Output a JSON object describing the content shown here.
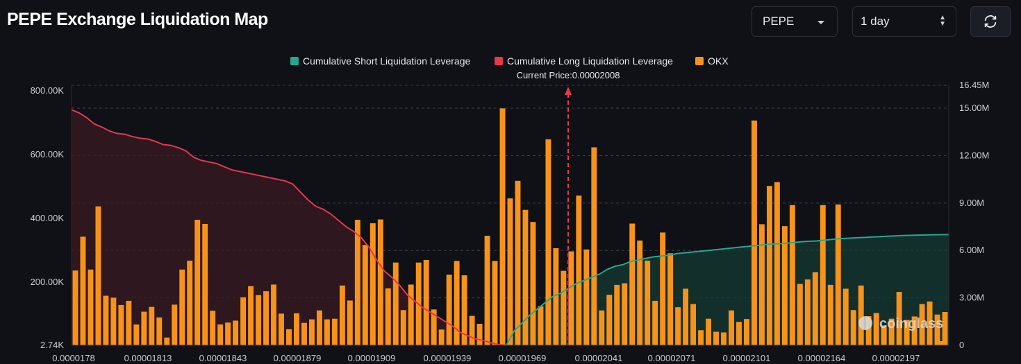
{
  "header": {
    "title": "PEPE Exchange Liquidation Map"
  },
  "controls": {
    "coin_select": {
      "value": "PEPE"
    },
    "range_select": {
      "value": "1 day"
    },
    "refresh_icon": "refresh-icon"
  },
  "colors": {
    "short": "#26a88e",
    "long": "#e8364d",
    "okx": "#f7931a",
    "background": "#0f1116",
    "grid": "#3a3f4a",
    "current_price": "#e8364d"
  },
  "chart_data": {
    "type": "bar",
    "legend": [
      {
        "name": "Cumulative Short Liquidation Leverage",
        "color": "#26a88e"
      },
      {
        "name": "Cumulative Long Liquidation Leverage",
        "color": "#e8364d"
      },
      {
        "name": "OKX",
        "color": "#f7931a"
      }
    ],
    "current_price_label": "Current Price:0.00002008",
    "current_price_index": 57,
    "left_axis": {
      "ticks": [
        "800.00K",
        "600.00K",
        "400.00K",
        "200.00K",
        "2.74K"
      ],
      "min": 2740,
      "max": 800000
    },
    "right_axis": {
      "ticks": [
        "16.45M",
        "15.00M",
        "12.00M",
        "9.00M",
        "6.00M",
        "3.00M",
        "0"
      ],
      "min": 0,
      "max": 16450000
    },
    "x_tick_labels": [
      "0.0000178",
      "0.00001813",
      "0.00001843",
      "0.00001879",
      "0.00001909",
      "0.00001939",
      "0.00001969",
      "0.00002041",
      "0.00002071",
      "0.00002101",
      "0.00002164",
      "0.00002197"
    ],
    "x_tick_indices": [
      0,
      10,
      20,
      30,
      40,
      50,
      60,
      70,
      80,
      90,
      100,
      110
    ],
    "bars": [
      {
        "series": "OKX",
        "values": [
          237000,
          343000,
          240000,
          438000,
          158000,
          152000,
          129000,
          142000,
          68000,
          108000,
          123000,
          90000,
          27000,
          130000,
          240000,
          268000,
          396000,
          383000,
          111000,
          68000,
          74000,
          80000,
          153000,
          188000,
          160000,
          172000,
          193000,
          102000,
          53000,
          103000,
          73000,
          84000,
          112000,
          84000,
          86000,
          190000,
          143000,
          396000,
          317000,
          385000,
          397000,
          181000,
          262000,
          113000,
          193000,
          262000,
          270000,
          115000,
          52000,
          224000,
          267000,
          222000,
          95000,
          70000,
          346000,
          267000,
          745000,
          463000,
          518000,
          427000,
          389000,
          125000,
          648000,
          307000,
          236000,
          297000,
          472000,
          303000,
          623000,
          112000,
          161000,
          192000,
          197000,
          384000,
          331000,
          268000,
          142000,
          356000,
          291000,
          122000,
          180000,
          132000,
          50000,
          86000,
          45000,
          43000,
          112000,
          76000,
          85000,
          707000,
          382000,
          502000,
          514000,
          376000,
          442000,
          195000,
          209000,
          232000,
          442000,
          192000,
          444000,
          180000,
          113000,
          190000,
          94000,
          104000,
          65000,
          86000,
          170000,
          82000,
          93000,
          132000,
          140000,
          99000,
          107000,
          114000,
          63000,
          70000,
          88000,
          68000,
          74000,
          132000,
          120000,
          57000,
          96000,
          75000,
          110000,
          48000,
          18000,
          6000,
          6000,
          40000,
          45000,
          30000,
          52000,
          20000,
          12000,
          40000,
          4000,
          6000,
          40000,
          52000,
          56000,
          62000,
          50000,
          67000,
          52000,
          72000,
          4000,
          4000,
          4000,
          4000,
          4000,
          4000,
          4000,
          4000,
          4000,
          4000,
          4000,
          4000,
          4000,
          4000,
          4000,
          4000,
          4000,
          4000,
          4000,
          4000,
          4000,
          4000,
          4000,
          4000,
          4000,
          4000,
          4000,
          4000,
          4000,
          4000,
          4000,
          4000,
          4000,
          4000,
          4000,
          4000,
          4000,
          4000,
          4000,
          4000,
          4000,
          4000,
          4000,
          4000,
          4000,
          4000,
          4000,
          4000,
          4000,
          4000,
          4000,
          4000,
          4000,
          4000,
          4000,
          4000,
          4000,
          4000,
          4000,
          4000,
          4000,
          4000,
          4000,
          4000,
          4000,
          4000,
          4000,
          4000,
          4000,
          4000,
          4000,
          4000,
          4000,
          4000,
          4000,
          4000,
          4000,
          4000,
          4000,
          4000,
          4000,
          4000,
          4000,
          4000,
          4000,
          4000,
          4000,
          4000,
          4000,
          4000,
          4000,
          4000
        ]
      }
    ],
    "series": [
      {
        "name": "Cumulative Long Liquidation Leverage",
        "axis": "right",
        "x_range": [
          0,
          57
        ],
        "values": [
          14.9,
          14.7,
          14.4,
          14.0,
          13.8,
          13.55,
          13.4,
          13.35,
          13.2,
          13.1,
          13.05,
          12.9,
          12.7,
          12.65,
          12.5,
          12.3,
          11.9,
          11.7,
          11.6,
          11.5,
          11.3,
          11.1,
          11.0,
          10.9,
          10.8,
          10.7,
          10.6,
          10.5,
          10.4,
          10.2,
          9.7,
          9.2,
          8.8,
          8.6,
          8.3,
          7.9,
          7.5,
          7.2,
          6.8,
          6.2,
          5.4,
          4.7,
          4.3,
          3.8,
          3.2,
          2.8,
          2.4,
          2.1,
          1.8,
          1.5,
          1.2,
          0.8,
          0.6,
          0.4,
          0.3,
          0.15,
          0.05,
          0.0
        ]
      },
      {
        "name": "Cumulative Short Liquidation Leverage",
        "axis": "right",
        "x_range": [
          57,
          115
        ],
        "values": [
          0.0,
          0.9,
          1.4,
          1.9,
          2.3,
          2.7,
          3.1,
          3.3,
          3.6,
          3.9,
          4.1,
          4.3,
          4.5,
          4.8,
          5.0,
          5.1,
          5.3,
          5.4,
          5.5,
          5.6,
          5.65,
          5.7,
          5.8,
          5.85,
          5.9,
          5.95,
          6.0,
          6.05,
          6.1,
          6.15,
          6.2,
          6.25,
          6.3,
          6.35,
          6.4,
          6.42,
          6.45,
          6.5,
          6.55,
          6.58,
          6.6,
          6.65,
          6.7,
          6.75,
          6.77,
          6.8,
          6.82,
          6.85,
          6.87,
          6.9,
          6.92,
          6.94,
          6.96,
          6.97,
          6.98,
          6.99,
          7.0,
          7.0
        ]
      }
    ]
  },
  "watermark": {
    "text": "coinglass"
  }
}
